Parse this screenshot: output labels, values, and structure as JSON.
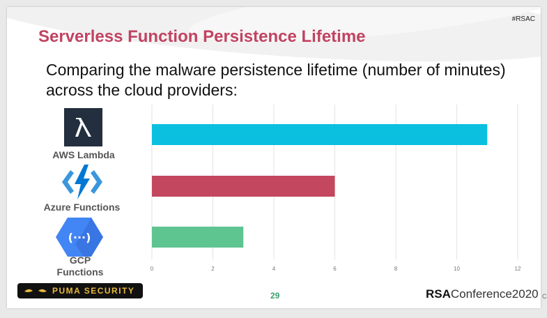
{
  "hashtag": "#RSAC",
  "title": "Serverless Function Persistence Lifetime",
  "subtitle": "Comparing the malware persistence lifetime (number of minutes) across the cloud providers:",
  "providers": [
    {
      "label": "AWS Lambda",
      "icon": "aws-lambda-icon"
    },
    {
      "label": "Azure Functions",
      "icon": "azure-functions-icon"
    },
    {
      "label": "GCP Functions",
      "icon": "gcp-functions-icon"
    }
  ],
  "footer": {
    "brand": "PUMA SECURITY",
    "page_number": "29",
    "conference_bold": "RSA",
    "conference_rest": "Conference2020"
  },
  "chart_data": {
    "type": "bar",
    "orientation": "horizontal",
    "categories": [
      "AWS Lambda",
      "Azure Functions",
      "GCP Functions"
    ],
    "values": [
      11,
      6,
      3
    ],
    "colors": [
      "#0bbfdf",
      "#c3475f",
      "#5ec490"
    ],
    "xlim": [
      0,
      12
    ],
    "xticks": [
      0,
      2,
      4,
      6,
      8,
      10,
      12
    ],
    "grid": true
  }
}
